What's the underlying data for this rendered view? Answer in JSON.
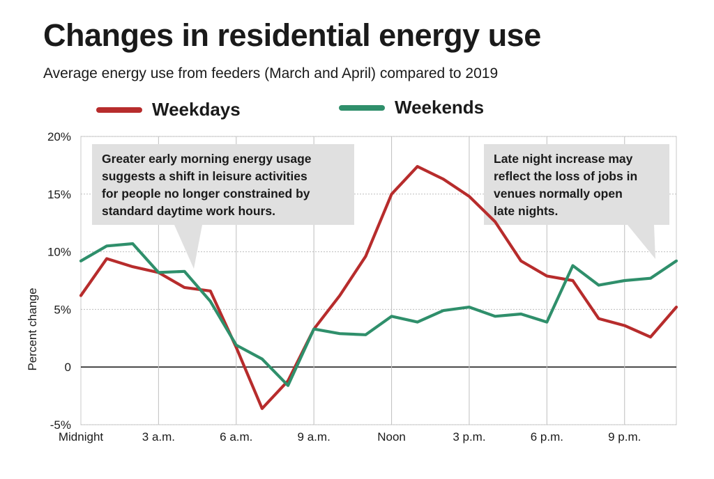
{
  "title": "Changes in residential energy use",
  "subtitle": "Average energy use from feeders (March and April) compared to 2019",
  "legend": [
    {
      "label": "Weekdays",
      "color": "#b72c2c"
    },
    {
      "label": "Weekends",
      "color": "#2f8f6b"
    }
  ],
  "annotations": [
    {
      "lines": [
        "Greater early morning energy usage",
        "suggests a shift in leisure activities",
        "for people no longer constrained by",
        "standard daytime work hours."
      ]
    },
    {
      "lines": [
        "Late night increase may",
        "reflect the loss of jobs in",
        "venues normally open",
        "late nights."
      ]
    }
  ],
  "chart_data": {
    "type": "line",
    "ylabel": "Percent change",
    "xlabel": "",
    "x_tick_labels": [
      "Midnight",
      "3 a.m.",
      "6 a.m.",
      "9 a.m.",
      "Noon",
      "3 p.m.",
      "6 p.m.",
      "9 p.m."
    ],
    "y_tick_labels": [
      "20%",
      "15%",
      "10%",
      "5%",
      "0",
      "-5%"
    ],
    "ylim": [
      -5,
      20
    ],
    "xlim": [
      0,
      23
    ],
    "grid": true,
    "legend_position": "top",
    "x": [
      0,
      1,
      2,
      3,
      4,
      5,
      6,
      7,
      8,
      9,
      10,
      11,
      12,
      13,
      14,
      15,
      16,
      17,
      18,
      19,
      20,
      21,
      22,
      23
    ],
    "series": [
      {
        "name": "Weekdays",
        "color": "#b72c2c",
        "values": [
          6.2,
          9.4,
          8.7,
          8.2,
          6.9,
          6.6,
          1.7,
          -3.6,
          -1.2,
          3.3,
          6.2,
          9.6,
          15.0,
          17.4,
          16.3,
          14.8,
          12.6,
          9.2,
          7.9,
          7.5,
          4.2,
          3.6,
          2.6,
          5.2
        ]
      },
      {
        "name": "Weekends",
        "color": "#2f8f6b",
        "values": [
          9.2,
          10.5,
          10.7,
          8.2,
          8.3,
          5.7,
          1.9,
          0.7,
          -1.6,
          3.3,
          2.9,
          2.8,
          4.4,
          3.9,
          4.9,
          5.2,
          4.4,
          4.6,
          3.9,
          8.8,
          7.1,
          7.5,
          7.7,
          9.2
        ]
      }
    ]
  }
}
